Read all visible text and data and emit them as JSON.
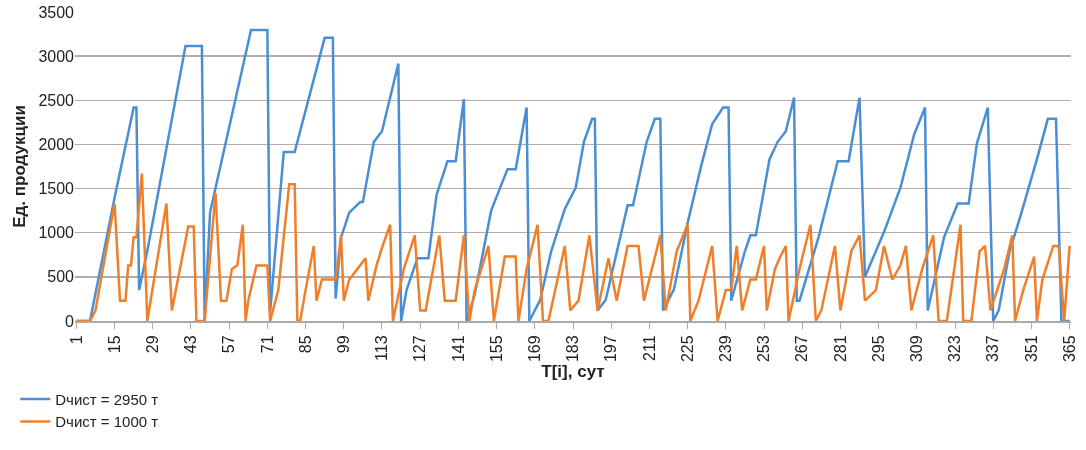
{
  "chart_data": {
    "type": "line",
    "xlabel": "T[i], сут",
    "ylabel": "Ед. продукции",
    "xlim": [
      0.5,
      365.5
    ],
    "xticks": [
      1,
      15,
      29,
      43,
      57,
      71,
      85,
      99,
      113,
      127,
      141,
      155,
      169,
      183,
      197,
      211,
      225,
      239,
      253,
      267,
      281,
      295,
      309,
      323,
      337,
      351,
      365
    ],
    "ylim": [
      0,
      3500
    ],
    "yticks": [
      0,
      500,
      1000,
      1500,
      2000,
      2500,
      3000,
      3500
    ],
    "grid": "y",
    "legend": "bottom left",
    "marker": "none",
    "line_style": "solid",
    "series": [
      {
        "name": "Dчист = 2950 т",
        "color": "#4a8fd4",
        "x": [
          1,
          6,
          15,
          22,
          23,
          24,
          27,
          41,
          47,
          48,
          50,
          65,
          71,
          72,
          77,
          81,
          92,
          95,
          96,
          98,
          101,
          105,
          106,
          110,
          113,
          119,
          120,
          122,
          126,
          130,
          133,
          137,
          140,
          143,
          144,
          147,
          153,
          159,
          162,
          166,
          167,
          171,
          175,
          180,
          184,
          187,
          190,
          191,
          192,
          195,
          203,
          205,
          210,
          213,
          215,
          216,
          220,
          225,
          230,
          234,
          238,
          240,
          241,
          246,
          248,
          250,
          255,
          258,
          261,
          264,
          265,
          266,
          273,
          280,
          284,
          288,
          290,
          297,
          303,
          308,
          312,
          313,
          319,
          324,
          328,
          331,
          335,
          337,
          339,
          343,
          347,
          353,
          357,
          360,
          362,
          365
        ],
        "values": [
          0,
          0,
          1395,
          2418,
          2418,
          350,
          794,
          3115,
          3115,
          0,
          1231,
          3295,
          3295,
          100,
          1913,
          1913,
          3207,
          3207,
          254,
          946,
          1227,
          1347,
          1347,
          2027,
          2150,
          2915,
          0,
          350,
          710,
          710,
          1430,
          1810,
          1810,
          2514,
          0,
          300,
          1250,
          1720,
          1720,
          2418,
          0,
          240,
          790,
          1270,
          1510,
          2030,
          2290,
          2290,
          120,
          240,
          1310,
          1310,
          2030,
          2290,
          2290,
          120,
          360,
          1110,
          1760,
          2230,
          2418,
          2418,
          230,
          790,
          970,
          970,
          1830,
          2030,
          2150,
          2530,
          230,
          230,
          950,
          1810,
          1810,
          2530,
          500,
          1010,
          1510,
          2110,
          2418,
          120,
          950,
          1330,
          1330,
          2010,
          2418,
          0,
          120,
          790,
          1190,
          1830,
          2290,
          2290,
          0,
          0
        ]
      },
      {
        "name": "Dчист = 1000 т",
        "color": "#f07f2a",
        "x": [
          1,
          6,
          8,
          15,
          17,
          19,
          20,
          21,
          22,
          23,
          24,
          25,
          27,
          34,
          36,
          42,
          44,
          45,
          48,
          52,
          54,
          56,
          58,
          60,
          62,
          63,
          64,
          67,
          71,
          72,
          75,
          79,
          81,
          82,
          83,
          85,
          88,
          89,
          91,
          96,
          98,
          99,
          101,
          105,
          107,
          108,
          111,
          113,
          116,
          117,
          121,
          125,
          127,
          129,
          134,
          136,
          140,
          143,
          145,
          147,
          152,
          154,
          158,
          162,
          163,
          166,
          170,
          172,
          174,
          180,
          182,
          185,
          189,
          192,
          196,
          199,
          203,
          207,
          209,
          215,
          217,
          221,
          225,
          226,
          229,
          234,
          236,
          239,
          241,
          243,
          245,
          248,
          250,
          253,
          254,
          257,
          259,
          261,
          262,
          266,
          270,
          272,
          274,
          279,
          281,
          285,
          288,
          290,
          294,
          297,
          300,
          303,
          305,
          307,
          311,
          315,
          317,
          320,
          325,
          326,
          329,
          332,
          334,
          336,
          341,
          344,
          345,
          348,
          352,
          353,
          355,
          359,
          361,
          363,
          365
        ],
        "values": [
          0,
          0,
          120,
          1330,
          230,
          230,
          630,
          630,
          950,
          950,
          1310,
          1670,
          0,
          1330,
          120,
          1070,
          1070,
          0,
          0,
          1450,
          230,
          230,
          590,
          630,
          1090,
          0,
          230,
          630,
          630,
          0,
          350,
          1550,
          1550,
          0,
          0,
          350,
          850,
          230,
          470,
          470,
          970,
          230,
          470,
          630,
          710,
          230,
          630,
          830,
          1090,
          0,
          590,
          970,
          120,
          120,
          970,
          230,
          230,
          970,
          0,
          350,
          850,
          0,
          730,
          730,
          0,
          590,
          1090,
          0,
          0,
          850,
          120,
          230,
          970,
          120,
          710,
          230,
          850,
          850,
          230,
          970,
          120,
          790,
          1090,
          0,
          230,
          850,
          0,
          350,
          350,
          850,
          120,
          470,
          470,
          850,
          120,
          590,
          730,
          850,
          0,
          590,
          1090,
          0,
          120,
          850,
          120,
          790,
          970,
          230,
          350,
          850,
          470,
          630,
          850,
          120,
          590,
          970,
          0,
          0,
          1090,
          0,
          0,
          790,
          850,
          120,
          590,
          970,
          0,
          350,
          730,
          0,
          470,
          850,
          850,
          0,
          850
        ]
      }
    ]
  }
}
